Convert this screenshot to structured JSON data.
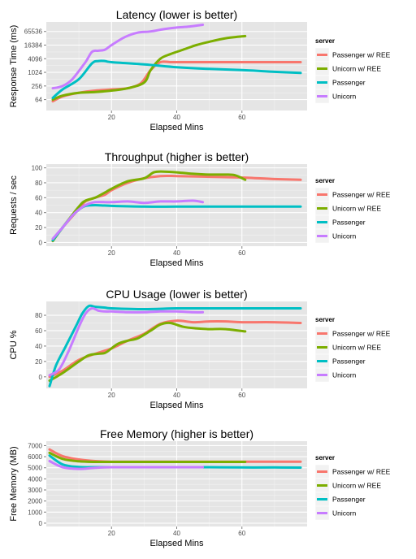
{
  "colors": {
    "passenger_ree": "#F8766D",
    "unicorn_ree": "#7CAE00",
    "passenger": "#00BFC4",
    "unicorn": "#C77CFF",
    "panel_bg": "#E5E5E5",
    "grid_major": "#FFFFFF",
    "grid_minor": "#F2F2F2"
  },
  "chart_data": [
    {
      "type": "line",
      "title": "Latency (lower is better)",
      "xlabel": "Elapsed Mins",
      "ylabel": "Response Time (ms)",
      "xlim": [
        0,
        80
      ],
      "ylim_log2": [
        4.4,
        17.4
      ],
      "yscale": "log2",
      "x_ticks": [
        20,
        40,
        60
      ],
      "y_ticks": [
        64,
        256,
        1024,
        4096,
        16384,
        65536
      ],
      "y_tick_labels": [
        "64",
        "256",
        "1024",
        "4096",
        "16384",
        "65536"
      ],
      "legend_title": "server",
      "legend_position": "right",
      "series": [
        {
          "name": "Passenger w/ REE",
          "color_key": "passenger_ree",
          "x": [
            2,
            5,
            10,
            15,
            20,
            25,
            29,
            32,
            35,
            38,
            40,
            50,
            60,
            70,
            78
          ],
          "y": [
            54,
            88,
            128,
            160,
            181,
            203,
            340,
            1290,
            2900,
            2900,
            2900,
            2900,
            2900,
            2900,
            2900
          ]
        },
        {
          "name": "Unicorn w/ REE",
          "color_key": "unicorn_ree",
          "x": [
            2,
            5,
            10,
            15,
            20,
            25,
            30,
            32,
            35,
            38,
            42,
            46,
            50,
            55,
            61
          ],
          "y": [
            64,
            96,
            128,
            138,
            160,
            203,
            362,
            1290,
            4100,
            6500,
            10300,
            16400,
            23000,
            32800,
            41000
          ]
        },
        {
          "name": "Passenger",
          "color_key": "passenger",
          "x": [
            2,
            5,
            10,
            14,
            16,
            18,
            20,
            30,
            40,
            50,
            60,
            70,
            78
          ],
          "y": [
            76,
            181,
            512,
            2560,
            3250,
            3250,
            2900,
            2300,
            1720,
            1450,
            1290,
            1080,
            960
          ]
        },
        {
          "name": "Unicorn",
          "color_key": "unicorn",
          "x": [
            2,
            5,
            8,
            12,
            14,
            16,
            18,
            20,
            24,
            28,
            32,
            36,
            40,
            44,
            48
          ],
          "y": [
            203,
            256,
            512,
            2900,
            8200,
            9300,
            10300,
            16400,
            36500,
            57900,
            65500,
            82600,
            97400,
            109000,
            130000
          ]
        }
      ]
    },
    {
      "type": "line",
      "title": "Throughput (higher is better)",
      "xlabel": "Elapsed Mins",
      "ylabel": "Requests / sec",
      "xlim": [
        0,
        80
      ],
      "ylim": [
        -5,
        105
      ],
      "x_ticks": [
        20,
        40,
        60
      ],
      "y_ticks": [
        0,
        20,
        40,
        60,
        80,
        100
      ],
      "y_tick_labels": [
        "0",
        "20",
        "40",
        "60",
        "80",
        "100"
      ],
      "legend_title": "server",
      "legend_position": "right",
      "series": [
        {
          "name": "Passenger w/ REE",
          "color_key": "passenger_ree",
          "x": [
            2,
            5,
            10,
            12,
            15,
            18,
            20,
            25,
            30,
            35,
            40,
            50,
            60,
            70,
            78
          ],
          "y": [
            2,
            20,
            45,
            55,
            60,
            64,
            70,
            80,
            86,
            89,
            89,
            88,
            87,
            85,
            84
          ]
        },
        {
          "name": "Unicorn w/ REE",
          "color_key": "unicorn_ree",
          "x": [
            2,
            5,
            10,
            12,
            15,
            18,
            20,
            25,
            30,
            33,
            36,
            40,
            45,
            50,
            55,
            58,
            61
          ],
          "y": [
            2,
            20,
            48,
            56,
            60,
            67,
            72,
            82,
            86,
            94,
            95,
            94,
            92,
            91,
            91,
            90,
            84
          ]
        },
        {
          "name": "Passenger",
          "color_key": "passenger",
          "x": [
            2,
            5,
            8,
            10,
            12,
            15,
            20,
            30,
            40,
            50,
            60,
            70,
            78
          ],
          "y": [
            3,
            20,
            36,
            44,
            49,
            50,
            49,
            48,
            48,
            48,
            48,
            48,
            48
          ]
        },
        {
          "name": "Unicorn",
          "color_key": "unicorn",
          "x": [
            2,
            5,
            8,
            10,
            12,
            15,
            20,
            25,
            30,
            35,
            40,
            45,
            48
          ],
          "y": [
            5,
            20,
            36,
            44,
            50,
            54,
            54,
            55,
            53,
            55,
            55,
            56,
            54
          ]
        }
      ]
    },
    {
      "type": "line",
      "title": "CPU Usage (lower is better)",
      "xlabel": "Elapsed Mins",
      "ylabel": "CPU %",
      "xlim": [
        0,
        80
      ],
      "ylim": [
        -15,
        98
      ],
      "x_ticks": [
        20,
        40,
        60
      ],
      "y_ticks": [
        0,
        20,
        40,
        60,
        80
      ],
      "y_tick_labels": [
        "0",
        "20",
        "40",
        "60",
        "80"
      ],
      "legend_title": "server",
      "legend_position": "right",
      "series": [
        {
          "name": "Passenger w/ REE",
          "color_key": "passenger_ree",
          "x": [
            1,
            5,
            10,
            15,
            20,
            25,
            30,
            35,
            40,
            45,
            50,
            55,
            60,
            70,
            78
          ],
          "y": [
            0,
            8,
            22,
            30,
            37,
            47,
            56,
            69,
            73,
            71,
            72,
            72,
            71,
            71,
            70
          ]
        },
        {
          "name": "Unicorn w/ REE",
          "color_key": "unicorn_ree",
          "x": [
            1,
            5,
            10,
            13,
            16,
            18,
            20,
            22,
            25,
            28,
            32,
            35,
            38,
            42,
            46,
            50,
            55,
            61
          ],
          "y": [
            -5,
            5,
            20,
            28,
            30,
            31,
            37,
            43,
            47,
            50,
            60,
            68,
            70,
            65,
            63,
            62,
            62,
            59
          ]
        },
        {
          "name": "Passenger",
          "color_key": "passenger",
          "x": [
            1,
            3,
            6,
            9,
            11,
            13,
            15,
            18,
            20,
            30,
            40,
            50,
            60,
            70,
            78
          ],
          "y": [
            -12,
            15,
            40,
            65,
            82,
            92,
            91,
            90,
            89,
            88,
            89,
            89,
            89,
            89,
            89
          ]
        },
        {
          "name": "Unicorn",
          "color_key": "unicorn",
          "x": [
            1,
            4,
            7,
            10,
            12,
            14,
            16,
            18,
            20,
            25,
            30,
            35,
            40,
            45,
            48
          ],
          "y": [
            2,
            10,
            35,
            65,
            82,
            89,
            86,
            85,
            85,
            84,
            84,
            85,
            85,
            84,
            84
          ]
        }
      ]
    },
    {
      "type": "line",
      "title": "Free Memory (higher is better)",
      "xlabel": "Elapsed Mins",
      "ylabel": "Free Memory (MB)",
      "xlim": [
        0,
        80
      ],
      "ylim": [
        -300,
        7400
      ],
      "x_ticks": [
        20,
        40,
        60
      ],
      "y_ticks": [
        0,
        1000,
        2000,
        3000,
        4000,
        5000,
        6000,
        7000
      ],
      "y_tick_labels": [
        "0",
        "1000",
        "2000",
        "3000",
        "4000",
        "5000",
        "6000",
        "7000"
      ],
      "legend_title": "server",
      "legend_position": "right",
      "series": [
        {
          "name": "Passenger w/ REE",
          "color_key": "passenger_ree",
          "x": [
            1,
            5,
            10,
            15,
            20,
            30,
            40,
            50,
            60,
            70,
            78
          ],
          "y": [
            6650,
            6050,
            5750,
            5600,
            5550,
            5550,
            5550,
            5550,
            5550,
            5550,
            5550
          ]
        },
        {
          "name": "Unicorn w/ REE",
          "color_key": "unicorn_ree",
          "x": [
            1,
            5,
            10,
            15,
            20,
            30,
            40,
            50,
            61
          ],
          "y": [
            6350,
            5800,
            5580,
            5530,
            5530,
            5530,
            5530,
            5530,
            5530
          ]
        },
        {
          "name": "Passenger",
          "color_key": "passenger",
          "x": [
            1,
            5,
            10,
            15,
            20,
            30,
            40,
            50,
            60,
            70,
            78
          ],
          "y": [
            6100,
            5300,
            5070,
            5050,
            5050,
            5050,
            5050,
            5050,
            5030,
            5030,
            5020
          ]
        },
        {
          "name": "Unicorn",
          "color_key": "unicorn",
          "x": [
            1,
            5,
            10,
            15,
            20,
            30,
            40,
            48
          ],
          "y": [
            5600,
            5050,
            4900,
            5000,
            5050,
            5050,
            5050,
            5050
          ]
        }
      ]
    }
  ]
}
